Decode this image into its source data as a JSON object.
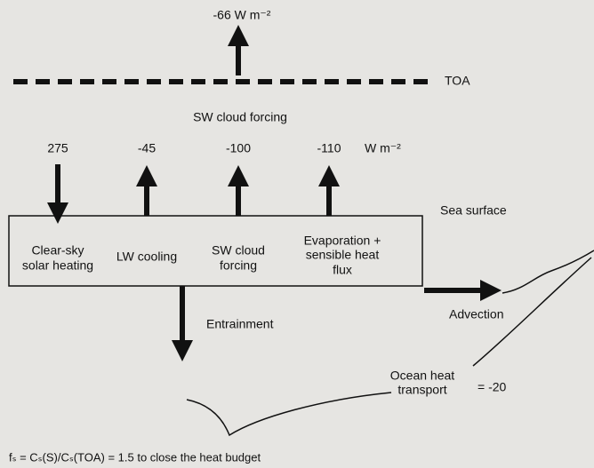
{
  "toa_flux": "-66 W m⁻²",
  "toa_label": "TOA",
  "sw_cloud_forcing_label": "SW cloud forcing",
  "fluxes": [
    "275",
    "-45",
    "-100",
    "-110"
  ],
  "flux_unit": "W m⁻²",
  "sea_surface": "Sea surface",
  "box_labels": [
    [
      "Clear-sky",
      "solar heating"
    ],
    [
      "LW cooling"
    ],
    [
      "SW cloud",
      "forcing"
    ],
    [
      "Evaporation +",
      "sensible heat",
      "flux"
    ]
  ],
  "advection": "Advection",
  "entrainment": "Entrainment",
  "ocean_heat_transport": [
    "Ocean heat",
    "transport"
  ],
  "ocean_heat_value": "= -20",
  "formula": "fₛ = Cₛ(S)/Cₛ(TOA) = 1.5 to close the heat budget"
}
